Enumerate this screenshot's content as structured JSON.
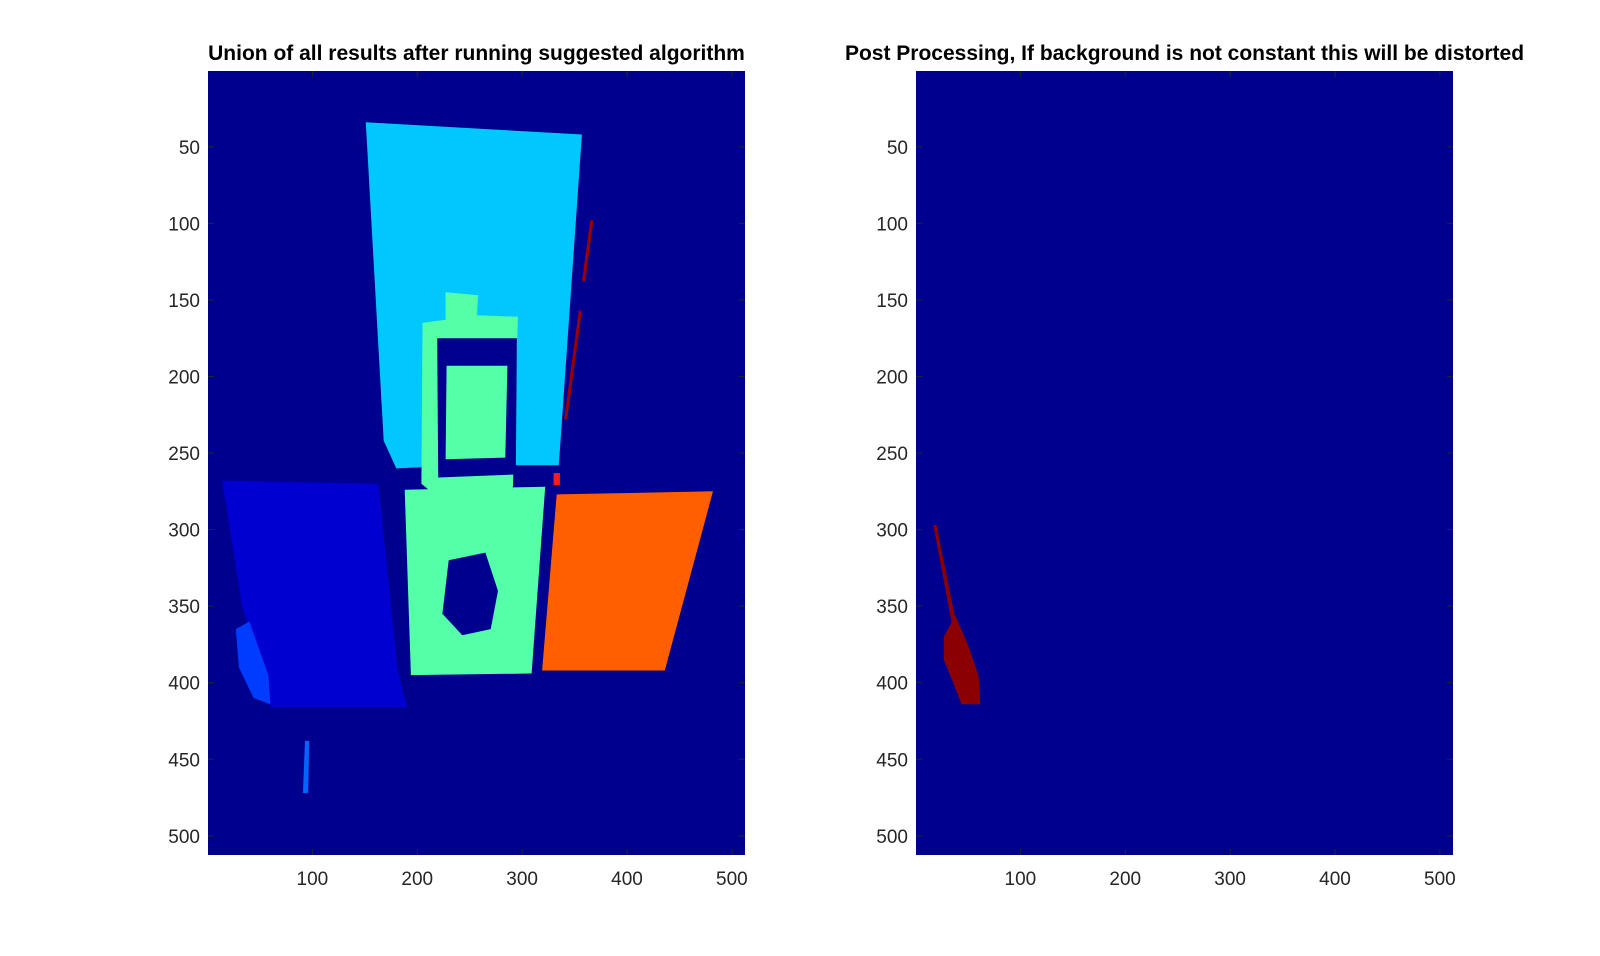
{
  "figure": {
    "background": "#ffffff"
  },
  "chart_data": [
    {
      "type": "heatmap",
      "title": "Union of all results after running suggested algorithm",
      "xlabel": "",
      "ylabel": "",
      "xlim": [
        0.5,
        512.5
      ],
      "ylim": [
        512.5,
        0.5
      ],
      "y_direction": "reverse",
      "x_ticks": [
        100,
        200,
        300,
        400,
        500
      ],
      "y_ticks": [
        50,
        100,
        150,
        200,
        250,
        300,
        350,
        400,
        450,
        500
      ],
      "colormap": "jet",
      "background_color": "#00008f",
      "grid": false,
      "regions": [
        {
          "label": "top panel",
          "color": "#00c8ff",
          "polygon": [
            [
              151,
              34
            ],
            [
              357,
              42
            ],
            [
              335,
              258
            ],
            [
              247,
              258
            ],
            [
              180,
              260
            ],
            [
              168,
              242
            ]
          ]
        },
        {
          "label": "sign body",
          "color": "#55ffa8",
          "polygon": [
            [
              188,
              274
            ],
            [
              322,
              272
            ],
            [
              309,
              394
            ],
            [
              194,
              395
            ]
          ]
        },
        {
          "label": "sign head",
          "color": "#55ffa8",
          "polygon": [
            [
              227,
              145
            ],
            [
              258,
              147
            ],
            [
              257,
              160
            ],
            [
              296,
              161
            ],
            [
              291,
              277
            ],
            [
              220,
              279
            ],
            [
              204,
              270
            ],
            [
              205,
              165
            ],
            [
              227,
              163
            ]
          ]
        },
        {
          "label": "sign face",
          "color": "#00008f",
          "polygon": [
            [
              219,
              175
            ],
            [
              295,
              175
            ],
            [
              294,
              264
            ],
            [
              220,
              266
            ]
          ]
        },
        {
          "label": "sign lettering",
          "color": "#55ffa8",
          "polygon": [
            [
              228,
              193
            ],
            [
              286,
              193
            ],
            [
              284,
              253
            ],
            [
              227,
              254
            ]
          ]
        },
        {
          "label": "sign hole",
          "color": "#00008f",
          "polygon": [
            [
              230,
              320
            ],
            [
              265,
              315
            ],
            [
              277,
              340
            ],
            [
              270,
              365
            ],
            [
              243,
              369
            ],
            [
              224,
              355
            ]
          ]
        },
        {
          "label": "left panel",
          "color": "#0000d0",
          "polygon": [
            [
              14,
              268
            ],
            [
              163,
              270
            ],
            [
              181,
              390
            ],
            [
              190,
              416
            ],
            [
              60,
              416
            ],
            [
              48,
              380
            ],
            [
              33,
              350
            ]
          ]
        },
        {
          "label": "left panel edge",
          "color": "#003cff",
          "polygon": [
            [
              27,
              365
            ],
            [
              40,
              360
            ],
            [
              58,
              395
            ],
            [
              60,
              414
            ],
            [
              44,
              410
            ],
            [
              30,
              390
            ]
          ]
        },
        {
          "label": "right panel",
          "color": "#ff5f00",
          "polygon": [
            [
              333,
              277
            ],
            [
              482,
              275
            ],
            [
              436,
              392
            ],
            [
              319,
              392
            ]
          ]
        },
        {
          "label": "small blob",
          "color": "#0064ff",
          "polygon": [
            [
              93,
              438
            ],
            [
              97,
              438
            ],
            [
              96,
              472
            ],
            [
              91,
              472
            ]
          ]
        },
        {
          "label": "streak 1",
          "color": "#9a0000",
          "polygon": [
            [
              365,
              98
            ],
            [
              368,
              98
            ],
            [
              360,
              138
            ],
            [
              357,
              138
            ]
          ]
        },
        {
          "label": "streak 2",
          "color": "#9a0000",
          "polygon": [
            [
              354,
              157
            ],
            [
              357,
              157
            ],
            [
              343,
              228
            ],
            [
              340,
              228
            ]
          ]
        },
        {
          "label": "marker",
          "color": "#ff1a1a",
          "polygon": [
            [
              330,
              263
            ],
            [
              336,
              263
            ],
            [
              336,
              271
            ],
            [
              330,
              271
            ]
          ]
        }
      ]
    },
    {
      "type": "heatmap",
      "title": "Post Processing, If background is not constant this will be distorted",
      "xlabel": "",
      "ylabel": "",
      "xlim": [
        0.5,
        512.5
      ],
      "ylim": [
        512.5,
        0.5
      ],
      "y_direction": "reverse",
      "x_ticks": [
        100,
        200,
        300,
        400,
        500
      ],
      "y_ticks": [
        50,
        100,
        150,
        200,
        250,
        300,
        350,
        400,
        450,
        500
      ],
      "colormap": "jet",
      "background_color": "#00008f",
      "grid": false,
      "regions": [
        {
          "label": "streak",
          "color": "#8b0000",
          "polygon": [
            [
              17,
              297
            ],
            [
              20,
              297
            ],
            [
              40,
              365
            ],
            [
              36,
              366
            ]
          ]
        },
        {
          "label": "cluster",
          "color": "#8b0000",
          "polygon": [
            [
              27,
              370
            ],
            [
              38,
              356
            ],
            [
              50,
              375
            ],
            [
              60,
              395
            ],
            [
              62,
              414
            ],
            [
              44,
              414
            ],
            [
              33,
              395
            ],
            [
              27,
              385
            ]
          ]
        }
      ]
    }
  ]
}
